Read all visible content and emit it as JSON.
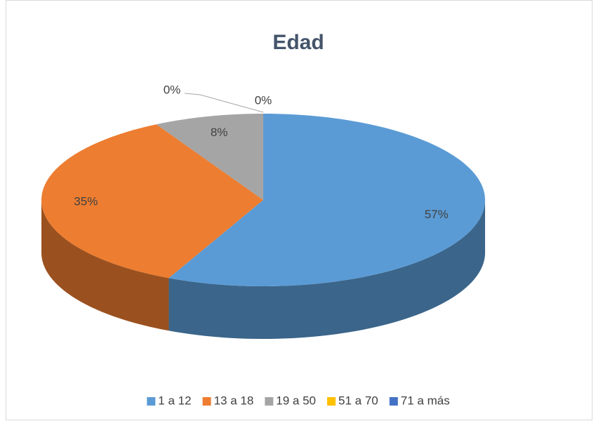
{
  "chart_data": {
    "type": "pie",
    "title": "Edad",
    "categories": [
      "1 a 12",
      "13 a 18",
      "19 a 50",
      "51 a 70",
      "71 a más"
    ],
    "values": [
      57,
      35,
      8,
      0,
      0
    ],
    "value_labels": [
      "57%",
      "35%",
      "8%",
      "0%",
      "0%"
    ],
    "colors": [
      "#5b9bd5",
      "#ed7d31",
      "#a5a5a5",
      "#ffc000",
      "#4472c4"
    ],
    "legend": "bottom"
  }
}
